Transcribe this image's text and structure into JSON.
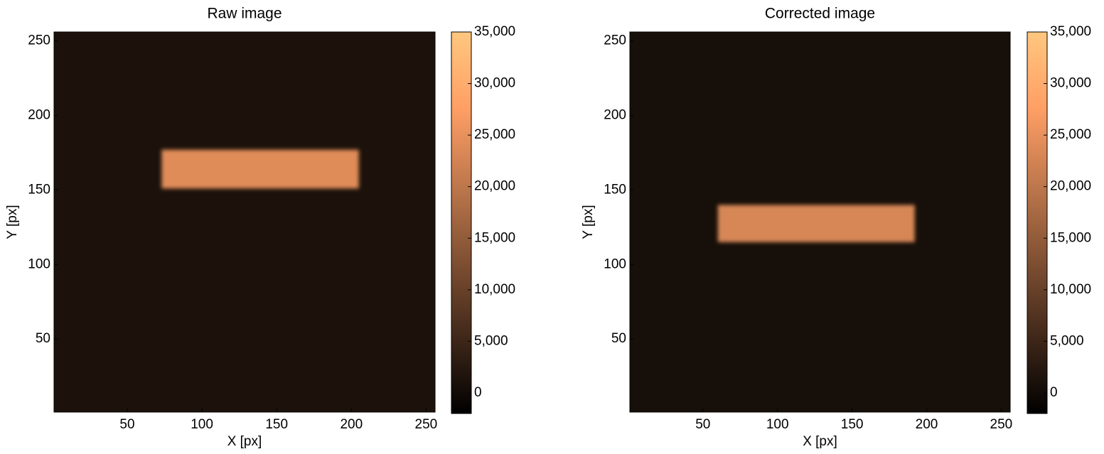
{
  "chart_data": [
    {
      "type": "image",
      "title": "Raw image",
      "xlabel": "X [px]",
      "ylabel": "Y [px]",
      "xlim": [
        1,
        256
      ],
      "ylim": [
        1,
        256
      ],
      "xticks": [
        50,
        100,
        150,
        200,
        250
      ],
      "yticks": [
        50,
        100,
        150,
        200,
        250
      ],
      "background_value": 1300,
      "regions": [
        {
          "x": [
            73,
            205
          ],
          "y": [
            151,
            177
          ],
          "value": 24000
        }
      ],
      "clim": [
        -2000,
        35000
      ],
      "cticks": [
        0,
        {
          "value": 5000,
          "label": "5,000"
        },
        {
          "value": 10000,
          "label": "10,000"
        },
        {
          "value": 15000,
          "label": "15,000"
        },
        {
          "value": 20000,
          "label": "20,000"
        },
        {
          "value": 25000,
          "label": "25,000"
        },
        {
          "value": 30000,
          "label": "30,000"
        },
        {
          "value": 35000,
          "label": "35,000"
        }
      ]
    },
    {
      "type": "image",
      "title": "Corrected image",
      "xlabel": "X [px]",
      "ylabel": "Y [px]",
      "xlim": [
        1,
        256
      ],
      "ylim": [
        1,
        256
      ],
      "xticks": [
        50,
        100,
        150,
        200,
        250
      ],
      "yticks": [
        50,
        100,
        150,
        200,
        250
      ],
      "background_value": 700,
      "regions": [
        {
          "x": [
            60,
            192
          ],
          "y": [
            115,
            140
          ],
          "value": 23000
        }
      ],
      "clim": [
        -2000,
        35000
      ],
      "cticks": [
        0,
        {
          "value": 5000,
          "label": "5,000"
        },
        {
          "value": 10000,
          "label": "10,000"
        },
        {
          "value": 15000,
          "label": "15,000"
        },
        {
          "value": 20000,
          "label": "20,000"
        },
        {
          "value": 25000,
          "label": "25,000"
        },
        {
          "value": 30000,
          "label": "30,000"
        },
        {
          "value": 35000,
          "label": "35,000"
        }
      ]
    }
  ]
}
